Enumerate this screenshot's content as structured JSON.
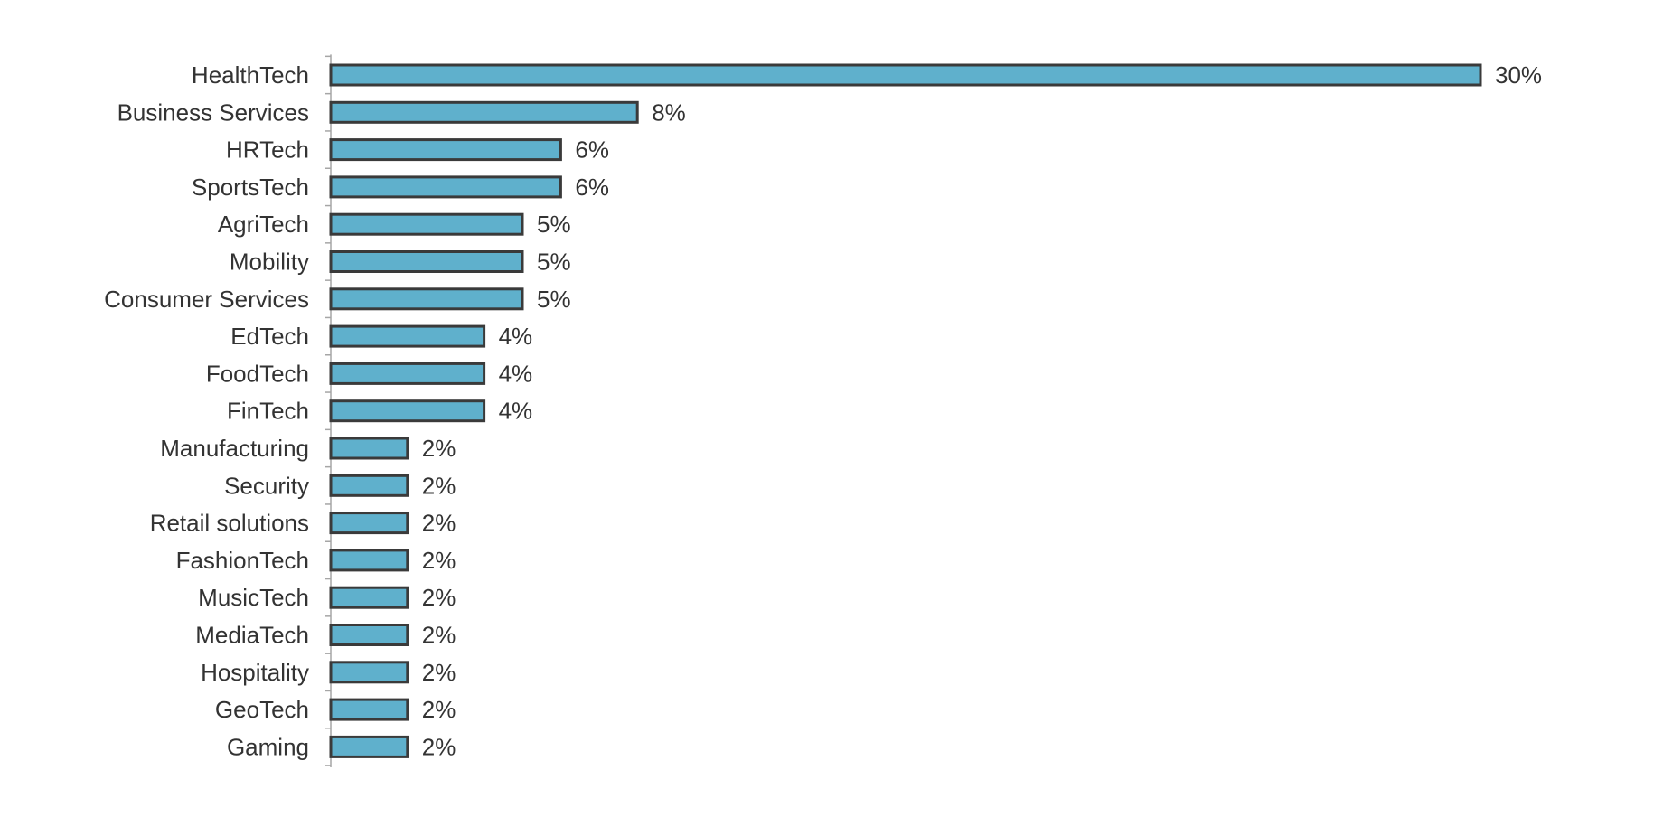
{
  "chart_data": {
    "type": "bar",
    "orientation": "horizontal",
    "title": "",
    "xlabel": "",
    "ylabel": "",
    "categories": [
      "HealthTech",
      "Business Services",
      "HRTech",
      "SportsTech",
      "AgriTech",
      "Mobility",
      "Consumer Services",
      "EdTech",
      "FoodTech",
      "FinTech",
      "Manufacturing",
      "Security",
      "Retail solutions",
      "FashionTech",
      "MusicTech",
      "MediaTech",
      "Hospitality",
      "GeoTech",
      "Gaming"
    ],
    "values": [
      30,
      8,
      6,
      6,
      5,
      5,
      5,
      4,
      4,
      4,
      2,
      2,
      2,
      2,
      2,
      2,
      2,
      2,
      2
    ],
    "value_labels": [
      "30%",
      "8%",
      "6%",
      "6%",
      "5%",
      "5%",
      "5%",
      "4%",
      "4%",
      "4%",
      "2%",
      "2%",
      "2%",
      "2%",
      "2%",
      "2%",
      "2%",
      "2%",
      "2%"
    ],
    "unit": "%",
    "xlim": [
      0,
      30
    ],
    "grid": false,
    "legend": "none",
    "bar_color": "#5fb0cc",
    "bar_border_color": "#3a3a3a"
  }
}
